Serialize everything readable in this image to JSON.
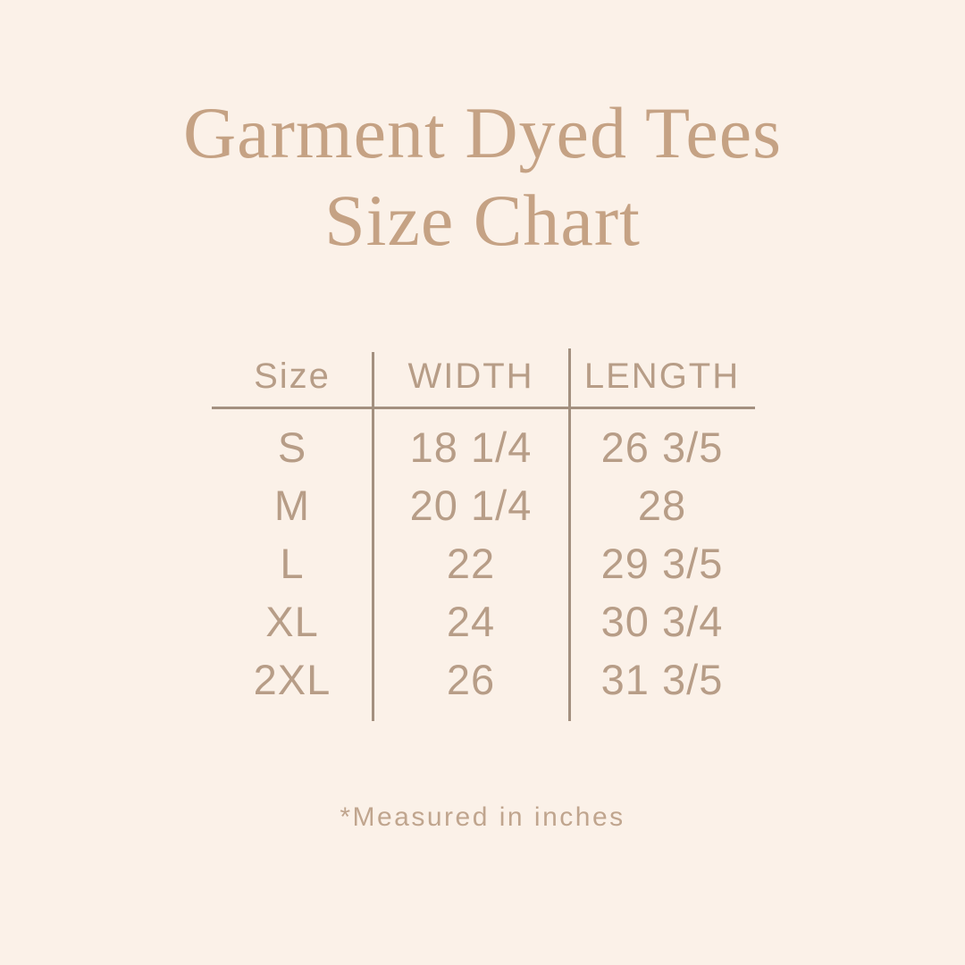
{
  "page": {
    "background_color": "#fbf1e8",
    "title_color": "#c5a284",
    "table_text_color": "#b79d87",
    "line_color": "#a3907f",
    "footnote_color": "#c0a58e"
  },
  "header": {
    "title_line1": "Garment Dyed Tees",
    "title_line2": "Size Chart"
  },
  "chart_data": {
    "type": "table",
    "title": "Garment Dyed Tees Size Chart",
    "columns": [
      "Size",
      "WIDTH",
      "LENGTH"
    ],
    "rows": [
      [
        "S",
        "18 1/4",
        "26 3/5"
      ],
      [
        "M",
        "20 1/4",
        "28"
      ],
      [
        "L",
        "22",
        "29 3/5"
      ],
      [
        "XL",
        "24",
        "30 3/4"
      ],
      [
        "2XL",
        "26",
        "31 3/5"
      ]
    ],
    "units": "inches"
  },
  "footer": {
    "note": "*Measured in inches"
  }
}
